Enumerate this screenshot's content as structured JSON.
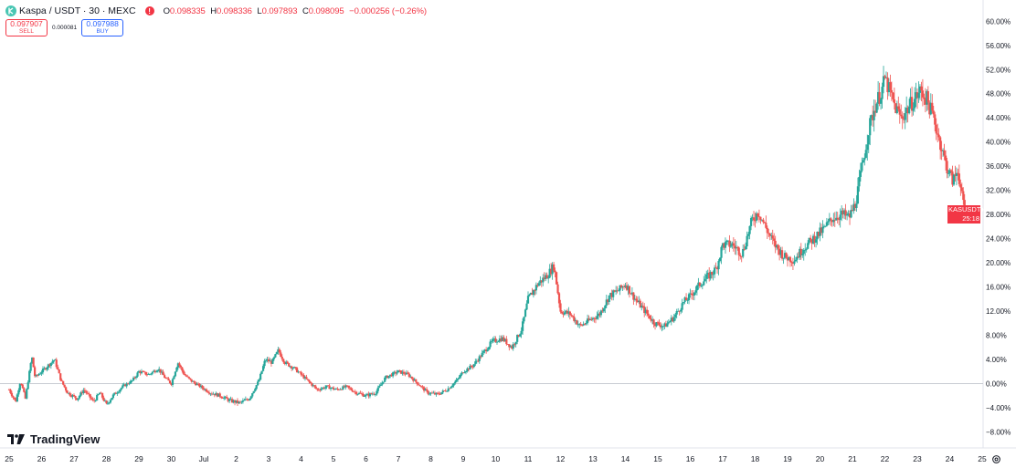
{
  "header": {
    "symbol": "Kaspa / USDT · 30 · MEXC",
    "ohlc": {
      "o_label": "O",
      "o": "0.098335",
      "h_label": "H",
      "h": "0.098336",
      "l_label": "L",
      "l": "0.097893",
      "c_label": "C",
      "c": "0.098095",
      "change": "−0.000256 (−0.26%)"
    }
  },
  "trade": {
    "sell_price": "0.097907",
    "sell_label": "SELL",
    "spread": "0.000081",
    "buy_price": "0.097988",
    "buy_label": "BUY"
  },
  "logo": {
    "text": "TradingView"
  },
  "price_tag": {
    "symbol": "KASUSDT",
    "value": "+28.78%",
    "countdown": "25:18"
  },
  "colors": {
    "up": "#26a69a",
    "down": "#ef5350",
    "zero_line": "#c8cbd2",
    "tag": "#f23645"
  },
  "icons": {
    "symbol": "kaspa-coin-icon",
    "alert": "alert-icon",
    "settings": "gear-icon"
  },
  "chart_data": {
    "type": "candlestick",
    "y_unit": "%",
    "ylim": [
      -10,
      62
    ],
    "y_ticks": [
      "60.00%",
      "56.00%",
      "52.00%",
      "48.00%",
      "44.00%",
      "40.00%",
      "36.00%",
      "32.00%",
      "28.00%",
      "24.00%",
      "20.00%",
      "16.00%",
      "12.00%",
      "8.00%",
      "4.00%",
      "0.00%",
      "−4.00%",
      "−8.00%"
    ],
    "x_ticks": [
      "25",
      "26",
      "27",
      "28",
      "29",
      "30",
      "Jul",
      "2",
      "3",
      "4",
      "5",
      "6",
      "7",
      "8",
      "9",
      "10",
      "11",
      "12",
      "13",
      "14",
      "15",
      "16",
      "17",
      "18",
      "19",
      "20",
      "21",
      "22",
      "23",
      "24",
      "25"
    ],
    "x_unit": "day index (0 = 25)",
    "last_value": 28.78,
    "path": [
      [
        0.0,
        -1.0
      ],
      [
        0.2,
        -3.0
      ],
      [
        0.35,
        0.5
      ],
      [
        0.5,
        -2.5
      ],
      [
        0.7,
        4.5
      ],
      [
        0.8,
        1.0
      ],
      [
        1.1,
        2.5
      ],
      [
        1.4,
        4.0
      ],
      [
        1.6,
        0.5
      ],
      [
        1.8,
        -1.5
      ],
      [
        2.1,
        -2.5
      ],
      [
        2.3,
        -1.0
      ],
      [
        2.6,
        -3.0
      ],
      [
        2.8,
        -1.5
      ],
      [
        3.0,
        -3.5
      ],
      [
        3.2,
        -2.0
      ],
      [
        3.5,
        -0.5
      ],
      [
        3.8,
        0.5
      ],
      [
        4.0,
        2.0
      ],
      [
        4.3,
        1.5
      ],
      [
        4.6,
        2.5
      ],
      [
        4.8,
        1.0
      ],
      [
        5.0,
        0.0
      ],
      [
        5.2,
        3.5
      ],
      [
        5.4,
        1.5
      ],
      [
        5.6,
        0.5
      ],
      [
        5.9,
        -0.5
      ],
      [
        6.2,
        -1.5
      ],
      [
        6.5,
        -2.0
      ],
      [
        6.8,
        -2.8
      ],
      [
        7.1,
        -3.2
      ],
      [
        7.4,
        -2.5
      ],
      [
        7.7,
        0.5
      ],
      [
        7.9,
        4.0
      ],
      [
        8.1,
        3.5
      ],
      [
        8.3,
        5.5
      ],
      [
        8.5,
        3.5
      ],
      [
        8.8,
        2.5
      ],
      [
        9.0,
        1.5
      ],
      [
        9.2,
        0.5
      ],
      [
        9.5,
        -1.0
      ],
      [
        9.8,
        -0.5
      ],
      [
        10.1,
        -1.0
      ],
      [
        10.4,
        -0.5
      ],
      [
        10.7,
        -1.5
      ],
      [
        11.0,
        -2.0
      ],
      [
        11.3,
        -1.5
      ],
      [
        11.6,
        1.0
      ],
      [
        12.0,
        2.0
      ],
      [
        12.3,
        1.5
      ],
      [
        12.6,
        0.0
      ],
      [
        12.9,
        -1.5
      ],
      [
        13.2,
        -1.8
      ],
      [
        13.5,
        -1.0
      ],
      [
        13.8,
        0.5
      ],
      [
        14.0,
        2.0
      ],
      [
        14.3,
        3.0
      ],
      [
        14.6,
        5.0
      ],
      [
        14.9,
        7.0
      ],
      [
        15.2,
        7.5
      ],
      [
        15.5,
        6.0
      ],
      [
        15.8,
        9.0
      ],
      [
        16.0,
        14.0
      ],
      [
        16.3,
        16.5
      ],
      [
        16.6,
        18.0
      ],
      [
        16.8,
        19.5
      ],
      [
        17.0,
        12.0
      ],
      [
        17.3,
        11.5
      ],
      [
        17.6,
        9.5
      ],
      [
        17.9,
        10.5
      ],
      [
        18.2,
        11.5
      ],
      [
        18.5,
        14.5
      ],
      [
        18.8,
        15.5
      ],
      [
        19.0,
        16.5
      ],
      [
        19.3,
        14.0
      ],
      [
        19.6,
        12.0
      ],
      [
        19.9,
        10.0
      ],
      [
        20.2,
        9.5
      ],
      [
        20.5,
        11.0
      ],
      [
        20.8,
        13.5
      ],
      [
        21.0,
        14.5
      ],
      [
        21.3,
        16.5
      ],
      [
        21.6,
        18.0
      ],
      [
        21.8,
        19.0
      ],
      [
        22.0,
        23.0
      ],
      [
        22.3,
        23.0
      ],
      [
        22.6,
        21.5
      ],
      [
        22.9,
        27.0
      ],
      [
        23.1,
        28.5
      ],
      [
        23.4,
        25.0
      ],
      [
        23.6,
        23.0
      ],
      [
        23.9,
        21.0
      ],
      [
        24.2,
        20.5
      ],
      [
        24.5,
        22.5
      ],
      [
        24.8,
        24.0
      ],
      [
        25.1,
        25.5
      ],
      [
        25.4,
        27.5
      ],
      [
        25.7,
        28.0
      ],
      [
        25.9,
        27.5
      ],
      [
        26.1,
        30.0
      ],
      [
        26.3,
        36.0
      ],
      [
        26.5,
        42.0
      ],
      [
        26.7,
        46.0
      ],
      [
        26.9,
        48.5
      ],
      [
        27.0,
        50.5
      ],
      [
        27.1,
        49.0
      ],
      [
        27.3,
        46.0
      ],
      [
        27.5,
        44.0
      ],
      [
        27.7,
        45.5
      ],
      [
        27.9,
        47.0
      ],
      [
        28.1,
        48.5
      ],
      [
        28.3,
        47.0
      ],
      [
        28.5,
        44.0
      ],
      [
        28.7,
        40.0
      ],
      [
        28.9,
        36.0
      ],
      [
        29.1,
        33.5
      ],
      [
        29.25,
        35.5
      ],
      [
        29.4,
        30.0
      ],
      [
        29.5,
        28.5
      ]
    ]
  }
}
